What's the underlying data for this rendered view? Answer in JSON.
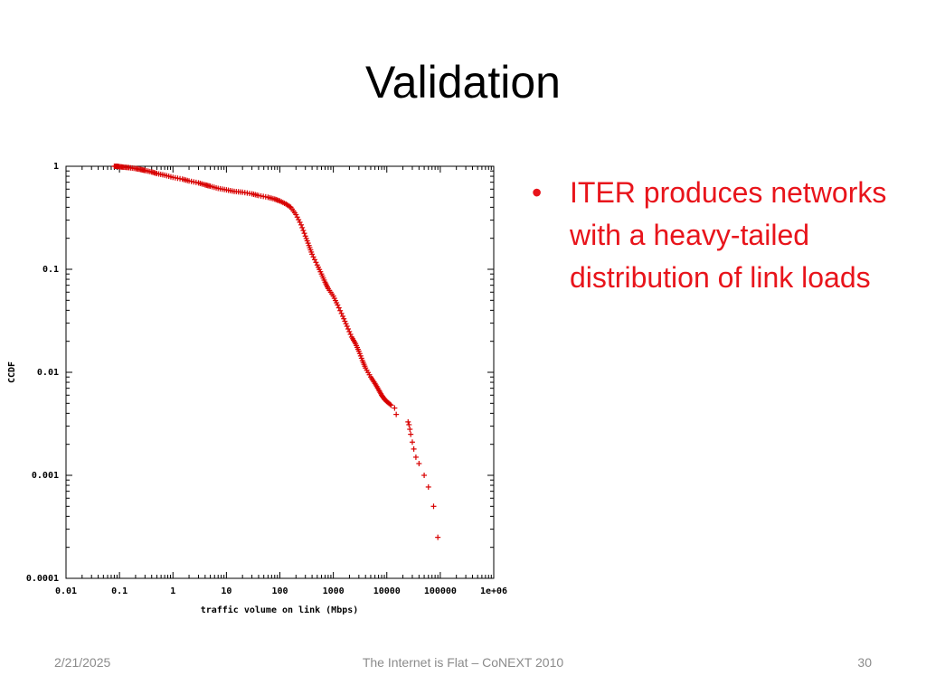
{
  "slide": {
    "title": "Validation",
    "bullet_marker": "•",
    "bullet_text": "ITER produces networks with a heavy-tailed distribution of link loads",
    "bullet_color": "#e8141b"
  },
  "footer": {
    "date": "2/21/2025",
    "center": "The Internet is Flat – CoNEXT 2010",
    "page_number": "30"
  },
  "chart_data": {
    "type": "scatter",
    "xlabel": "traffic volume on link (Mbps)",
    "ylabel": "CCDF",
    "x_scale": "log",
    "y_scale": "log",
    "xlim": [
      0.01,
      1000000
    ],
    "ylim": [
      0.0001,
      1
    ],
    "x_ticks": [
      "0.01",
      "0.1",
      "1",
      "10",
      "100",
      "1000",
      "10000",
      "100000",
      "1e+06"
    ],
    "y_ticks": [
      "1",
      "0.1",
      "0.01",
      "0.001",
      "0.0001"
    ],
    "grid": false,
    "marker": "+",
    "series_color": "#d80000",
    "series": [
      {
        "points": [
          [
            0.08,
            1.0
          ],
          [
            0.09,
            1.0
          ],
          [
            0.1,
            0.99
          ],
          [
            0.12,
            0.98
          ],
          [
            0.15,
            0.97
          ],
          [
            0.2,
            0.95
          ],
          [
            0.25,
            0.93
          ],
          [
            0.3,
            0.91
          ],
          [
            0.4,
            0.88
          ],
          [
            0.5,
            0.85
          ],
          [
            0.7,
            0.82
          ],
          [
            1,
            0.78
          ],
          [
            1.5,
            0.75
          ],
          [
            2,
            0.72
          ],
          [
            3,
            0.69
          ],
          [
            4,
            0.66
          ],
          [
            5,
            0.64
          ],
          [
            7,
            0.61
          ],
          [
            10,
            0.59
          ],
          [
            14,
            0.57
          ],
          [
            20,
            0.56
          ],
          [
            30,
            0.54
          ],
          [
            40,
            0.52
          ],
          [
            60,
            0.5
          ],
          [
            80,
            0.48
          ],
          [
            100,
            0.46
          ],
          [
            130,
            0.43
          ],
          [
            160,
            0.4
          ],
          [
            200,
            0.34
          ],
          [
            250,
            0.27
          ],
          [
            300,
            0.21
          ],
          [
            350,
            0.17
          ],
          [
            400,
            0.14
          ],
          [
            500,
            0.11
          ],
          [
            600,
            0.09
          ],
          [
            700,
            0.075
          ],
          [
            800,
            0.065
          ],
          [
            1000,
            0.055
          ],
          [
            1200,
            0.045
          ],
          [
            1500,
            0.035
          ],
          [
            1800,
            0.028
          ],
          [
            2200,
            0.022
          ],
          [
            2600,
            0.019
          ],
          [
            3000,
            0.016
          ],
          [
            3500,
            0.013
          ],
          [
            4000,
            0.011
          ],
          [
            5000,
            0.009
          ],
          [
            6000,
            0.0078
          ],
          [
            7000,
            0.0068
          ],
          [
            8000,
            0.006
          ],
          [
            9000,
            0.0055
          ],
          [
            10000,
            0.0052
          ],
          [
            12000,
            0.0048
          ],
          [
            14000,
            0.0045
          ],
          [
            15000,
            0.0039
          ],
          [
            25000,
            0.0033
          ],
          [
            26000,
            0.0031
          ],
          [
            27000,
            0.0028
          ],
          [
            28000,
            0.0025
          ],
          [
            30000,
            0.0021
          ],
          [
            32000,
            0.0018
          ],
          [
            35000,
            0.0015
          ],
          [
            40000,
            0.0013
          ],
          [
            50000,
            0.001
          ],
          [
            60000,
            0.00077
          ],
          [
            75000,
            0.0005
          ],
          [
            90000,
            0.00025
          ]
        ]
      }
    ]
  }
}
